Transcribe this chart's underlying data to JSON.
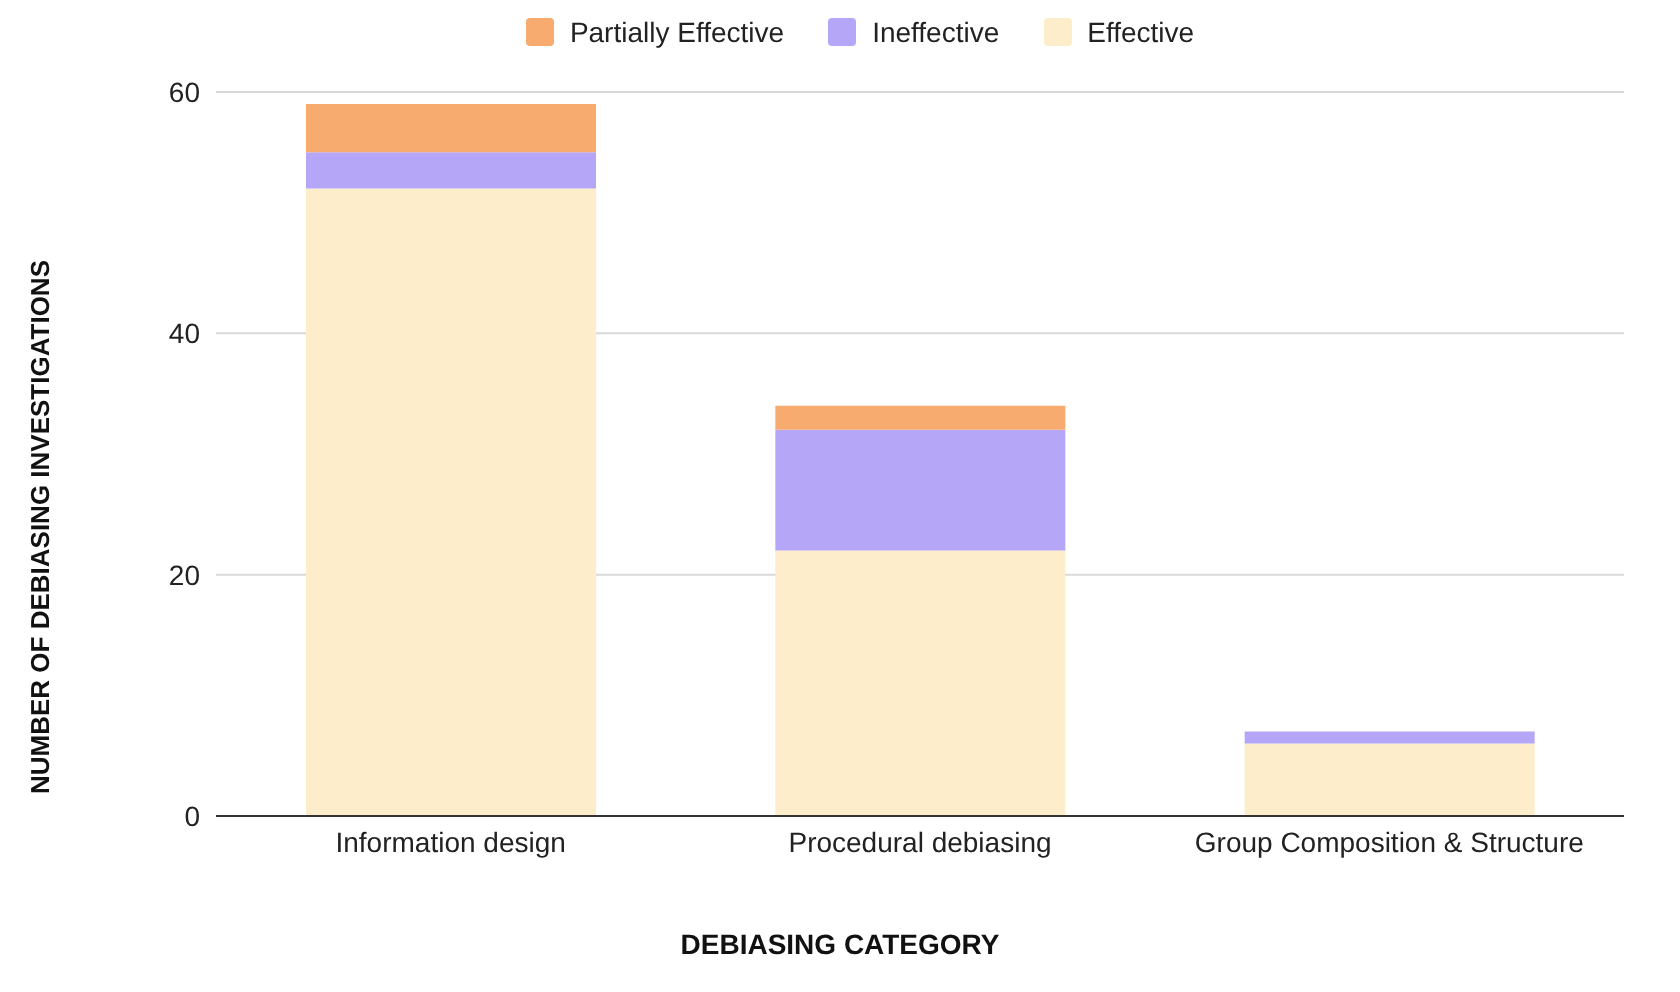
{
  "chart_data": {
    "type": "bar",
    "stacked": true,
    "xlabel": "DEBIASING CATEGORY",
    "ylabel": "NUMBER OF DEBIASING INVESTIGATIONS",
    "categories": [
      "Information design",
      "Procedural debiasing",
      "Group Composition & Structure"
    ],
    "series": [
      {
        "name": "Effective",
        "color": "#fdedcb",
        "values": [
          52,
          22,
          6
        ]
      },
      {
        "name": "Ineffective",
        "color": "#b6a6f7",
        "values": [
          3,
          10,
          1
        ]
      },
      {
        "name": "Partially Effective",
        "color": "#f8ab6e",
        "values": [
          4,
          2,
          0
        ]
      }
    ],
    "ylim": [
      0,
      60
    ],
    "yticks": [
      0,
      20,
      40,
      60
    ],
    "grid": "y",
    "legend": "top"
  }
}
